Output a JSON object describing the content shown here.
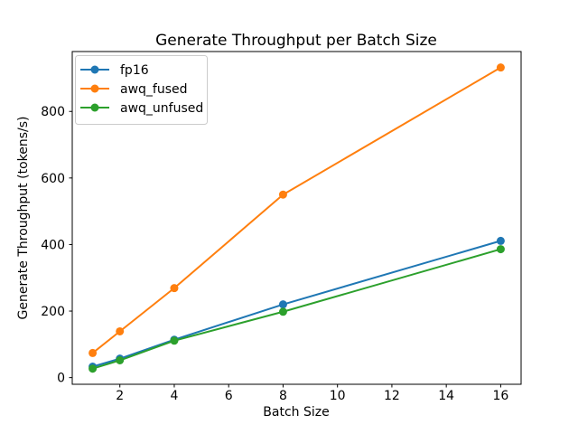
{
  "figure": {
    "background": "#ffffff",
    "spine_color": "#000000"
  },
  "chart_data": {
    "type": "line",
    "title": "Generate Throughput per Batch Size",
    "xlabel": "Batch Size",
    "ylabel": "Generate Throughput (tokens/s)",
    "x": [
      1,
      2,
      4,
      8,
      16
    ],
    "series": [
      {
        "name": "fp16",
        "color": "#1f77b4",
        "values": [
          33,
          57,
          114,
          220,
          411
        ]
      },
      {
        "name": "awq_fused",
        "color": "#ff7f0e",
        "values": [
          74,
          139,
          269,
          550,
          932
        ]
      },
      {
        "name": "awq_unfused",
        "color": "#2ca02c",
        "values": [
          27,
          52,
          111,
          198,
          386
        ]
      }
    ],
    "xlim": [
      0.25,
      16.75
    ],
    "ylim": [
      -20,
      980
    ],
    "xticks": [
      2,
      4,
      6,
      8,
      10,
      12,
      14,
      16
    ],
    "yticks": [
      0,
      200,
      400,
      600,
      800
    ],
    "grid": false,
    "legend_position": "upper-left",
    "marker": "circle",
    "line_width": 2,
    "marker_radius": 4.5
  }
}
